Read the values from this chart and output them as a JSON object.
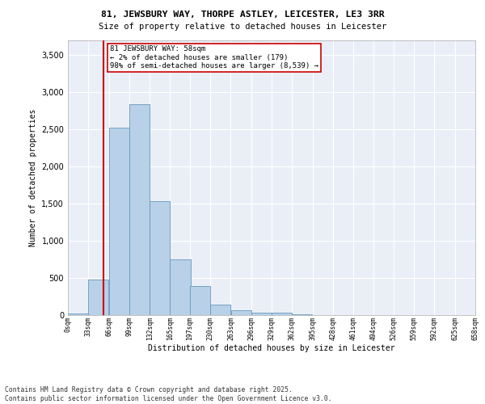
{
  "title1": "81, JEWSBURY WAY, THORPE ASTLEY, LEICESTER, LE3 3RR",
  "title2": "Size of property relative to detached houses in Leicester",
  "xlabel": "Distribution of detached houses by size in Leicester",
  "ylabel": "Number of detached properties",
  "bar_values": [
    20,
    480,
    2530,
    2840,
    1530,
    750,
    390,
    145,
    70,
    35,
    30,
    10,
    5,
    0,
    0,
    0,
    0,
    0,
    0,
    0
  ],
  "bin_edges": [
    0,
    33,
    66,
    99,
    132,
    165,
    197,
    230,
    263,
    296,
    329,
    362,
    395,
    428,
    461,
    494,
    526,
    559,
    592,
    625,
    658
  ],
  "tick_labels": [
    "0sqm",
    "33sqm",
    "66sqm",
    "99sqm",
    "132sqm",
    "165sqm",
    "197sqm",
    "230sqm",
    "263sqm",
    "296sqm",
    "329sqm",
    "362sqm",
    "395sqm",
    "428sqm",
    "461sqm",
    "494sqm",
    "526sqm",
    "559sqm",
    "592sqm",
    "625sqm",
    "658sqm"
  ],
  "bar_color": "#b8d0e8",
  "bar_edge_color": "#6699bb",
  "vline_x": 58,
  "vline_color": "#cc0000",
  "annotation_box_text": "81 JEWSBURY WAY: 58sqm\n← 2% of detached houses are smaller (179)\n98% of semi-detached houses are larger (8,539) →",
  "ylim": [
    0,
    3700
  ],
  "yticks": [
    0,
    500,
    1000,
    1500,
    2000,
    2500,
    3000,
    3500
  ],
  "bg_color": "#eaeff7",
  "footer_line1": "Contains HM Land Registry data © Crown copyright and database right 2025.",
  "footer_line2": "Contains public sector information licensed under the Open Government Licence v3.0."
}
